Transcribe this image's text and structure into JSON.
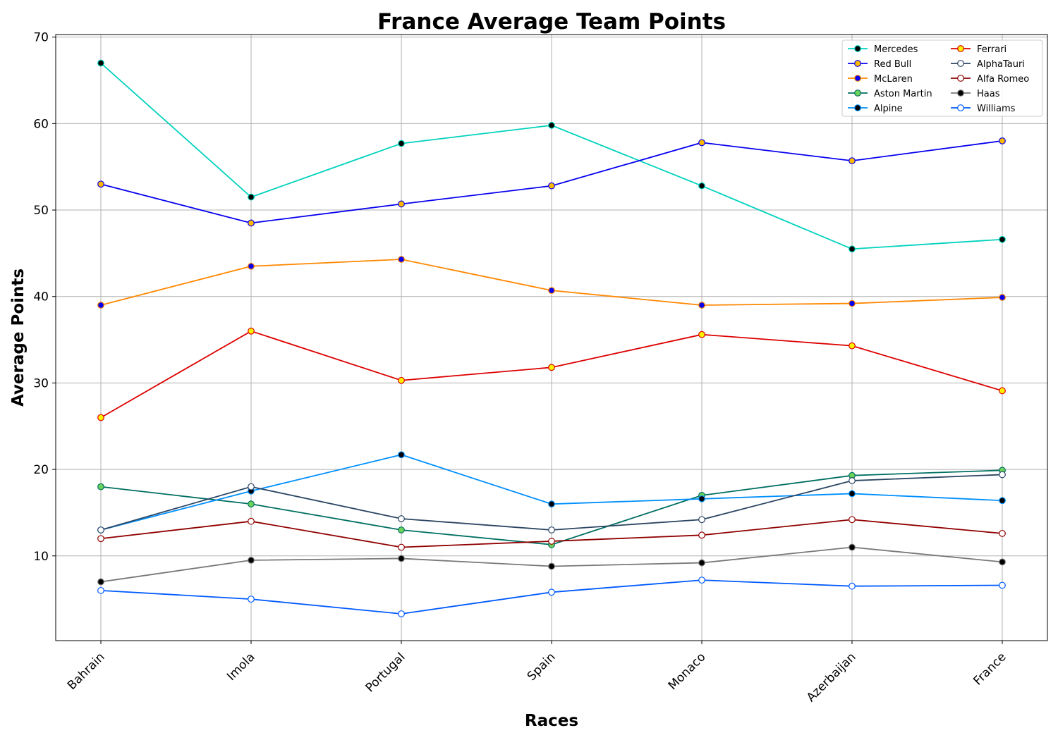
{
  "chart_data": {
    "type": "line",
    "title": "France Average Team Points",
    "xlabel": "Races",
    "ylabel": "Average Points",
    "categories": [
      "Bahrain",
      "Imola",
      "Portugal",
      "Spain",
      "Monaco",
      "Azerbaijan",
      "France"
    ],
    "ylim": [
      0.2,
      70.3
    ],
    "yticks": [
      10,
      20,
      30,
      40,
      50,
      60,
      70
    ],
    "grid": true,
    "legend_position": "top-right",
    "legend_columns": 2,
    "series": [
      {
        "name": "Mercedes",
        "color": "#00d2be",
        "marker_fill": "#000000",
        "values": [
          67.0,
          51.5,
          57.7,
          59.8,
          52.8,
          45.5,
          46.6
        ]
      },
      {
        "name": "Red Bull",
        "color": "#0600ef",
        "marker_fill": "#ffb800",
        "values": [
          53.0,
          48.5,
          50.7,
          52.8,
          57.8,
          55.7,
          58.0
        ]
      },
      {
        "name": "McLaren",
        "color": "#ff8700",
        "marker_fill": "#0600ef",
        "values": [
          39.0,
          43.5,
          44.3,
          40.7,
          39.0,
          39.2,
          39.9
        ]
      },
      {
        "name": "Aston Martin",
        "color": "#006f62",
        "marker_fill": "#6cd35a",
        "values": [
          18.0,
          16.0,
          13.0,
          11.3,
          17.0,
          19.3,
          19.9
        ]
      },
      {
        "name": "Alpine",
        "color": "#0090ff",
        "marker_fill": "#000000",
        "values": [
          13.0,
          17.5,
          21.7,
          16.0,
          16.6,
          17.2,
          16.4
        ]
      },
      {
        "name": "Ferrari",
        "color": "#dc0000",
        "marker_fill": "#fff200",
        "values": [
          26.0,
          36.0,
          30.3,
          31.8,
          35.6,
          34.3,
          29.1
        ]
      },
      {
        "name": "AlphaTauri",
        "color": "#2b4562",
        "marker_fill": "#ffffff",
        "values": [
          13.0,
          18.0,
          14.3,
          13.0,
          14.2,
          18.7,
          19.4
        ]
      },
      {
        "name": "Alfa Romeo",
        "color": "#900000",
        "marker_fill": "#ffffff",
        "values": [
          12.0,
          14.0,
          11.0,
          11.7,
          12.4,
          14.2,
          12.6
        ]
      },
      {
        "name": "Haas",
        "color": "#787878",
        "marker_fill": "#000000",
        "values": [
          7.0,
          9.5,
          9.7,
          8.8,
          9.2,
          11.0,
          9.3
        ]
      },
      {
        "name": "Williams",
        "color": "#005aff",
        "marker_fill": "#ffffff",
        "values": [
          6.0,
          5.0,
          3.3,
          5.8,
          7.2,
          6.5,
          6.6
        ]
      }
    ]
  }
}
